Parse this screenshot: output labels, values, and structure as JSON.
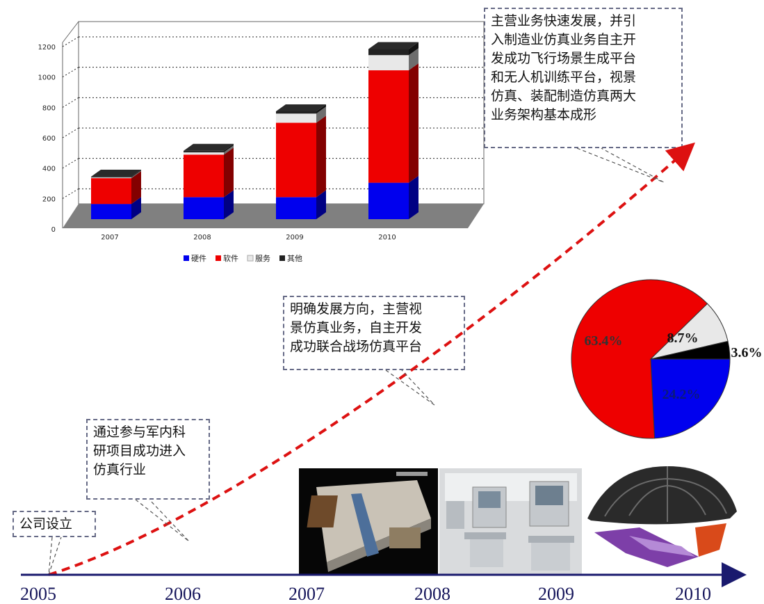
{
  "chart_data": [
    {
      "type": "bar",
      "stacked": true,
      "categories": [
        "2007",
        "2008",
        "2009",
        "2010"
      ],
      "series": [
        {
          "name": "硬件",
          "color": "#0000ee",
          "values": [
            100,
            145,
            145,
            240
          ]
        },
        {
          "name": "软件",
          "color": "#ee0000",
          "values": [
            170,
            280,
            490,
            740
          ]
        },
        {
          "name": "服务",
          "color": "#e8e8e8",
          "values": [
            5,
            15,
            60,
            100
          ]
        },
        {
          "name": "其他",
          "color": "#222222",
          "values": [
            5,
            10,
            15,
            40
          ]
        }
      ],
      "yticks": [
        "0",
        "200",
        "400",
        "600",
        "800",
        "1000",
        "1200"
      ],
      "ylim": [
        0,
        1200
      ],
      "grid": true,
      "legend": "bottom"
    },
    {
      "type": "pie",
      "slices": [
        {
          "label": "63.4%",
          "value": 63.4,
          "color": "#ee0000"
        },
        {
          "label": "8.7%",
          "value": 8.7,
          "color": "#e8e8e8"
        },
        {
          "label": "3.6%",
          "value": 3.6,
          "color": "#000000"
        },
        {
          "label": "24.2%",
          "value": 24.2,
          "color": "#0000ee"
        }
      ]
    }
  ],
  "timeline": {
    "years": [
      "2005",
      "2006",
      "2007",
      "2008",
      "2009",
      "2010"
    ],
    "axis_color": "#1a1a6e",
    "curve_color": "#dd1111"
  },
  "callouts": {
    "founding": "公司设立",
    "entry": [
      "通过参与军内科",
      "研项目成功进入",
      "仿真行业"
    ],
    "direction": [
      "明确发展方向，主营视",
      "景仿真业务，自主开发",
      "成功联合战场仿真平台"
    ],
    "growth": [
      "主营业务快速发展，并引",
      "入制造业仿真业务自主开",
      "发成功飞行场景生成平台",
      "和无人机训练平台，视景",
      "仿真、装配制造仿真两大",
      "业务架构基本成形"
    ]
  }
}
